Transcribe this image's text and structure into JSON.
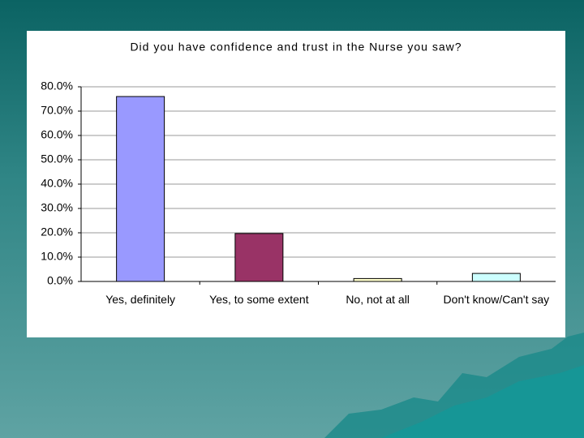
{
  "chart_data": {
    "type": "bar",
    "title": "Did you have confidence and trust in the Nurse you saw?",
    "categories": [
      "Yes, definitely",
      "Yes, to some extent",
      "No, not at all",
      "Don't know/Can't say"
    ],
    "values": [
      76.0,
      19.7,
      1.2,
      3.3
    ],
    "colors": [
      "#9999ff",
      "#993366",
      "#ffffcc",
      "#ccffff"
    ],
    "ylim": [
      0,
      80
    ],
    "yticks": [
      {
        "value": 0,
        "label": "0.0%"
      },
      {
        "value": 10,
        "label": "10.0%"
      },
      {
        "value": 20,
        "label": "20.0%"
      },
      {
        "value": 30,
        "label": "30.0%"
      },
      {
        "value": 40,
        "label": "40.0%"
      },
      {
        "value": 50,
        "label": "50.0%"
      },
      {
        "value": 60,
        "label": "60.0%"
      },
      {
        "value": 70,
        "label": "70.0%"
      },
      {
        "value": 80,
        "label": "80.0%"
      }
    ],
    "grid": true
  }
}
